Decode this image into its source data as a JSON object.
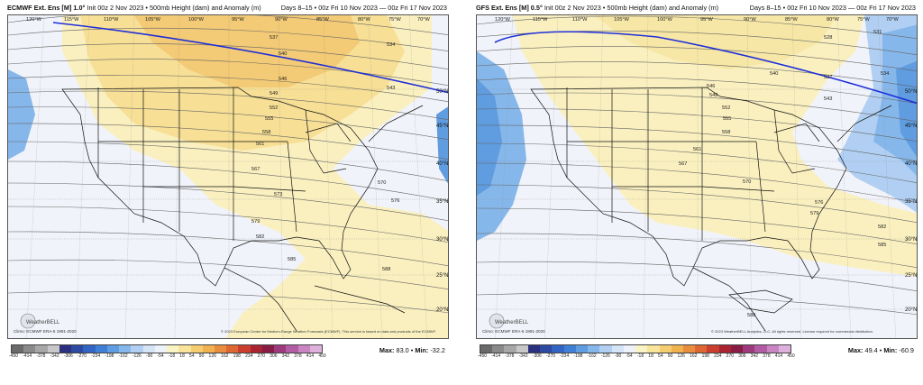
{
  "panels": [
    {
      "id": "ecmwf",
      "title_bold": "ECMWF Ext. Ens [M] 1.0°",
      "title_rest": " Init 00z 2 Nov 2023 • 500mb Height (dam) and Anomaly (m)",
      "date_range": "Days 8–15 • 00z Fri 10 Nov 2023 — 00z Fri 17 Nov 2023",
      "lon_labels": [
        "120°W",
        "115°W",
        "110°W",
        "105°W",
        "100°W",
        "95°W",
        "90°W",
        "85°W",
        "80°W",
        "75°W",
        "70°W"
      ],
      "lat_labels": [
        "50°N",
        "45°N",
        "40°N",
        "35°N",
        "30°N",
        "25°N",
        "20°N"
      ],
      "contour_labels": [
        "537",
        "534",
        "540",
        "543",
        "546",
        "549",
        "552",
        "555",
        "558",
        "561",
        "567",
        "570",
        "573",
        "576",
        "579",
        "582",
        "585",
        "588"
      ],
      "climo": "Climo: ECMWF ERA-5 1991-2020",
      "logo_text": "WeatherBELL",
      "credit": "© 2023 European Centre for Medium-Range Weather Forecasts (ECMWF). This service is based on data and products of the ECMWF.",
      "max_label": "Max:",
      "max_value": "83.0",
      "min_label": "Min:",
      "min_value": "-32.2"
    },
    {
      "id": "gfs",
      "title_bold": "GFS Ext. Ens [M] 0.5°",
      "title_rest": " Init 00z 2 Nov 2023 • 500mb Height (dam) and Anomaly (m)",
      "date_range": "Days 8–15 • 00z Fri 10 Nov 2023 — 00z Fri 17 Nov 2023",
      "lon_labels": [
        "120°W",
        "115°W",
        "110°W",
        "105°W",
        "100°W",
        "95°W",
        "90°W",
        "85°W",
        "80°W",
        "75°W",
        "70°W"
      ],
      "lat_labels": [
        "50°N",
        "45°N",
        "40°N",
        "35°N",
        "30°N",
        "25°N",
        "20°N"
      ],
      "contour_labels": [
        "528",
        "531",
        "534",
        "537",
        "540",
        "543",
        "546",
        "549",
        "552",
        "555",
        "558",
        "561",
        "567",
        "570",
        "576",
        "579",
        "582",
        "585",
        "588"
      ],
      "climo": "Climo: ECMWF ERA-5 1991-2020",
      "logo_text": "WeatherBELL",
      "credit": "© 2023 WeatherBELL Analytics, LLC. All rights reserved. License required for commercial distribution.",
      "max_label": "Max:",
      "max_value": "49.4",
      "min_label": "Min:",
      "min_value": "-60.9"
    }
  ],
  "colorbar": {
    "ticks": [
      "-450",
      "-414",
      "-378",
      "-342",
      "-306",
      "-270",
      "-234",
      "-198",
      "-162",
      "-126",
      "-90",
      "-54",
      "-18",
      "18",
      "54",
      "90",
      "126",
      "162",
      "198",
      "234",
      "270",
      "306",
      "342",
      "378",
      "414",
      "450"
    ],
    "colors": [
      "#6a6a6a",
      "#8a8a8a",
      "#a7a7a7",
      "#c8c8c8",
      "#2a2f7e",
      "#2b4aa0",
      "#3264c4",
      "#3f80d6",
      "#5f9ce0",
      "#86b7ea",
      "#b0cff2",
      "#d6e4f7",
      "#eef2fa",
      "#f9f4c4",
      "#f8e59a",
      "#f5cd70",
      "#f0b14f",
      "#e88d3d",
      "#dd6632",
      "#cb3e2e",
      "#a92330",
      "#891c45",
      "#9c3a7d",
      "#b25ca4",
      "#c985c2",
      "#deb0dc"
    ]
  }
}
